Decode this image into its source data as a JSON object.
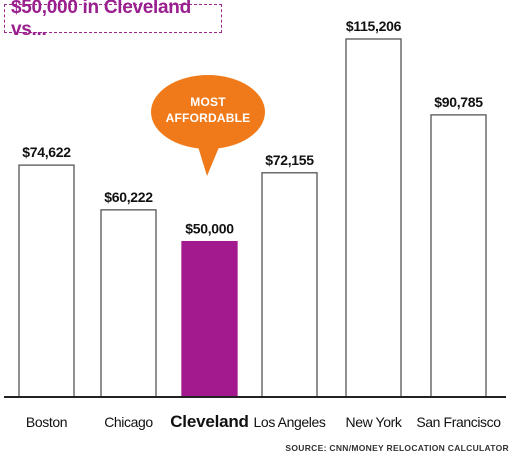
{
  "title": "$50,000 in Cleveland vs...",
  "source": "SOURCE: CNN/MONEY RELOCATION CALCULATOR",
  "callout": {
    "line1": "MOST",
    "line2": "AFFORDABLE"
  },
  "colors": {
    "highlight": "#a21a8e",
    "callout": "#f07a1a",
    "title": "#9a1f8f",
    "bar_outline": "#555555"
  },
  "chart_data": {
    "type": "bar",
    "title": "$50,000 in Cleveland vs...",
    "categories": [
      "Boston",
      "Chicago",
      "Cleveland",
      "Los Angeles",
      "New York",
      "San Francisco"
    ],
    "values": [
      74622,
      60222,
      50000,
      72155,
      115206,
      90785
    ],
    "value_labels": [
      "$74,622",
      "$60,222",
      "$50,000",
      "$72,155",
      "$115,206",
      "$90,785"
    ],
    "highlight": "Cleveland",
    "ylim": [
      0,
      115206
    ],
    "grid": false,
    "xlabel": "",
    "ylabel": ""
  }
}
